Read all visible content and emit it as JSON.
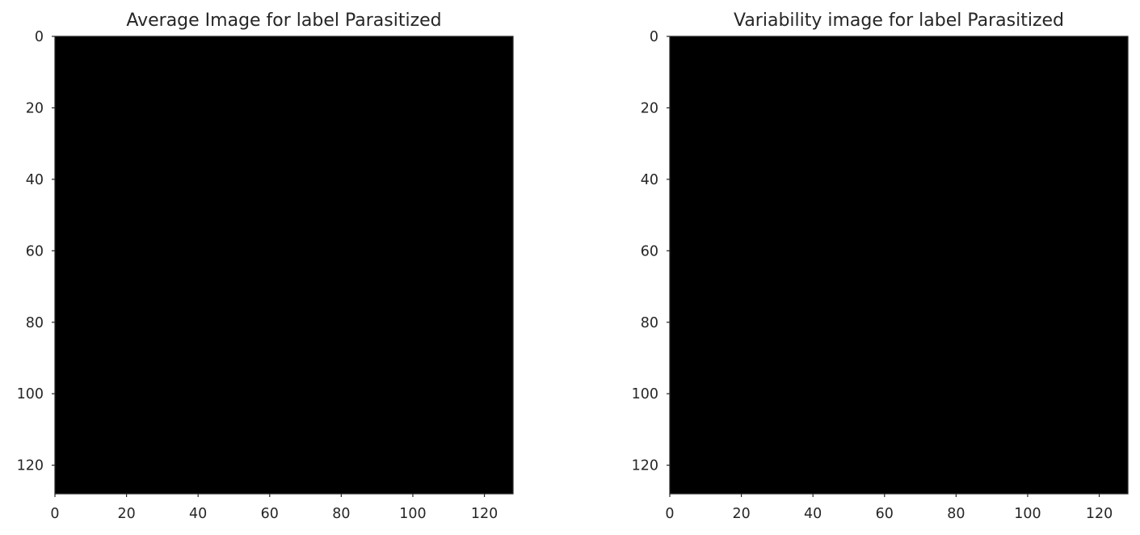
{
  "chart_data": [
    {
      "type": "heatmap",
      "title": "Average Image for label Parasitized",
      "xlabel": "",
      "ylabel": "",
      "xlim": [
        0,
        128
      ],
      "ylim": [
        128,
        0
      ],
      "xticks": [
        0,
        20,
        40,
        60,
        80,
        100,
        120
      ],
      "yticks": [
        0,
        20,
        40,
        60,
        80,
        100,
        120
      ],
      "image": {
        "kind": "rgb-image",
        "width": 128,
        "height": 128,
        "description_colors": {
          "background": "#000000",
          "disc": "#d99398",
          "rim": "#3a2c2a"
        },
        "center": [
          64,
          64
        ],
        "disc_radius": 60
      },
      "grid": false
    },
    {
      "type": "heatmap",
      "title": "Variability image for label Parasitized",
      "xlabel": "",
      "ylabel": "",
      "xlim": [
        0,
        128
      ],
      "ylim": [
        128,
        0
      ],
      "xticks": [
        0,
        20,
        40,
        60,
        80,
        100,
        120
      ],
      "yticks": [
        0,
        20,
        40,
        60,
        80,
        100,
        120
      ],
      "image": {
        "kind": "rgb-image",
        "width": 128,
        "height": 128,
        "description_colors": {
          "background": "#000000",
          "ring": "#8c706a",
          "mid": "#33282a",
          "center": "#050c05",
          "green_spots": "#17401b"
        },
        "center": [
          66,
          66
        ],
        "ring_radius": 60
      },
      "grid": false
    }
  ]
}
